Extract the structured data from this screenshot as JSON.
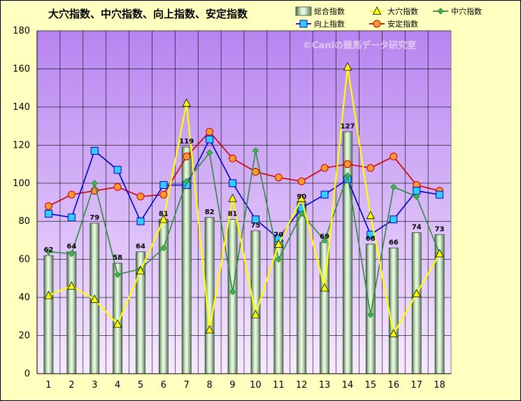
{
  "chart_data": {
    "type": "bar+line",
    "title": "大穴指数、中穴指数、向上指数、安定指数",
    "watermark": "©Caniの競馬データ研究室",
    "categories": [
      "1",
      "2",
      "3",
      "4",
      "5",
      "6",
      "7",
      "8",
      "9",
      "10",
      "11",
      "12",
      "13",
      "14",
      "15",
      "16",
      "17",
      "18"
    ],
    "ylim": [
      0,
      180
    ],
    "yticks": [
      0,
      20,
      40,
      60,
      80,
      100,
      120,
      140,
      160,
      180
    ],
    "grid": true,
    "legend_position": "top-right",
    "series": [
      {
        "name": "総合指数",
        "kind": "bar",
        "color": "#c8e6c0",
        "values": [
          62,
          64,
          79,
          58,
          64,
          81,
          119,
          82,
          81,
          75,
          70,
          90,
          69,
          127,
          68,
          66,
          74,
          73
        ],
        "labels": [
          "62",
          "64",
          "79",
          "58",
          "64",
          "81",
          "119",
          "82",
          "81",
          "75",
          "70",
          "90",
          "69",
          "127",
          "68",
          "66",
          "74",
          "73"
        ]
      },
      {
        "name": "大穴指数",
        "kind": "line",
        "color": "#ffff00",
        "marker": "triangle",
        "values": [
          41,
          46,
          39,
          26,
          54,
          81,
          142,
          23,
          92,
          31,
          68,
          92,
          45,
          161,
          83,
          21,
          42,
          63
        ]
      },
      {
        "name": "中穴指数",
        "kind": "line",
        "color": "#2e8b3e",
        "marker": "diamond",
        "values": [
          64,
          63,
          100,
          52,
          55,
          66,
          101,
          116,
          43,
          117,
          60,
          84,
          70,
          104,
          31,
          98,
          93,
          63
        ]
      },
      {
        "name": "向上指数",
        "kind": "line",
        "color": "#0000cc",
        "marker": "square",
        "values": [
          84,
          82,
          117,
          107,
          80,
          99,
          99,
          123,
          100,
          81,
          71,
          87,
          94,
          102,
          73,
          81,
          96,
          94
        ]
      },
      {
        "name": "安定指数",
        "kind": "line",
        "color": "#cc0000",
        "marker": "circle",
        "values": [
          88,
          94,
          96,
          98,
          93,
          94,
          114,
          127,
          113,
          106,
          103,
          101,
          108,
          110,
          108,
          114,
          99,
          96
        ]
      }
    ]
  },
  "colors": {
    "background": "#ffffc0",
    "plot_top": "#b784f0",
    "plot_bottom": "#f7eaff"
  }
}
